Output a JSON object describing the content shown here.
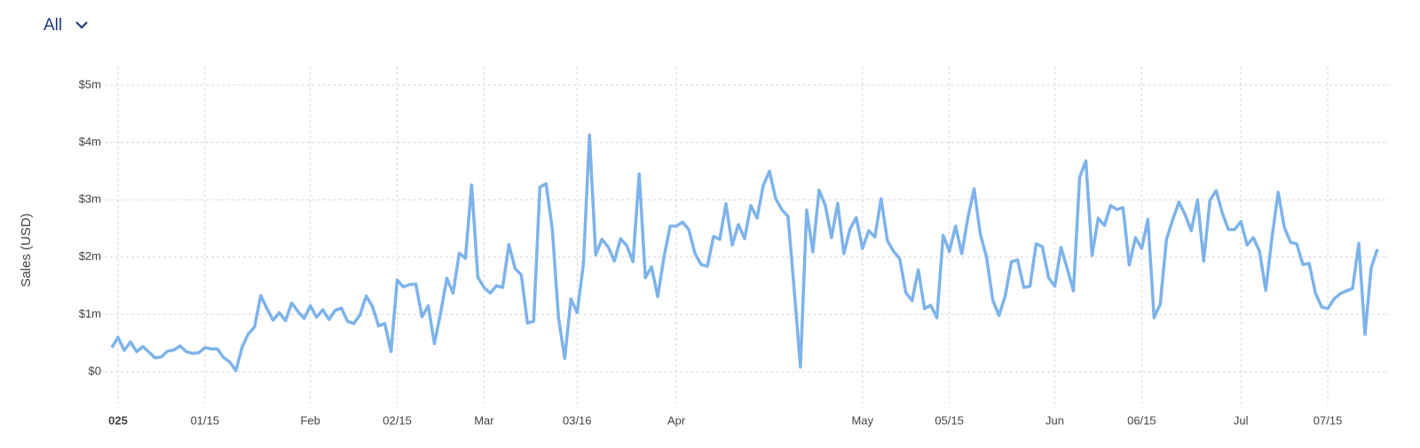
{
  "filter": {
    "label": "All"
  },
  "chart_data": {
    "type": "line",
    "y_label": "Sales (USD)",
    "color": "#7eb3ea",
    "grid": true,
    "xlim": [
      "2024-12-31",
      "2025-07-23"
    ],
    "xticks": [
      {
        "value": "2025-01-01",
        "label": "025"
      },
      {
        "value": "2025-01-15",
        "label": "01/15"
      },
      {
        "value": "2025-02-01",
        "label": "Feb"
      },
      {
        "value": "2025-02-15",
        "label": "02/15"
      },
      {
        "value": "2025-03-01",
        "label": "Mar"
      },
      {
        "value": "2025-03-16",
        "label": "03/16"
      },
      {
        "value": "2025-04-01",
        "label": "Apr"
      },
      {
        "value": "2025-05-01",
        "label": "May"
      },
      {
        "value": "2025-05-15",
        "label": "05/15"
      },
      {
        "value": "2025-06-01",
        "label": "Jun"
      },
      {
        "value": "2025-06-15",
        "label": "06/15"
      },
      {
        "value": "2025-07-01",
        "label": "Jul"
      },
      {
        "value": "2025-07-15",
        "label": "07/15"
      }
    ],
    "ylim": [
      0,
      5
    ],
    "yticks": [
      {
        "value": 0,
        "label": "$0"
      },
      {
        "value": 1,
        "label": "$1m"
      },
      {
        "value": 2,
        "label": "$2m"
      },
      {
        "value": 3,
        "label": "$3m"
      },
      {
        "value": 4,
        "label": "$4m"
      },
      {
        "value": 5,
        "label": "$5m"
      }
    ],
    "x": [
      "2024-12-31",
      "2025-01-01",
      "2025-01-02",
      "2025-01-03",
      "2025-01-04",
      "2025-01-05",
      "2025-01-06",
      "2025-01-07",
      "2025-01-08",
      "2025-01-09",
      "2025-01-10",
      "2025-01-11",
      "2025-01-12",
      "2025-01-13",
      "2025-01-14",
      "2025-01-15",
      "2025-01-16",
      "2025-01-17",
      "2025-01-18",
      "2025-01-19",
      "2025-01-20",
      "2025-01-21",
      "2025-01-22",
      "2025-01-23",
      "2025-01-24",
      "2025-01-25",
      "2025-01-26",
      "2025-01-27",
      "2025-01-28",
      "2025-01-29",
      "2025-01-30",
      "2025-01-31",
      "2025-02-01",
      "2025-02-02",
      "2025-02-03",
      "2025-02-04",
      "2025-02-05",
      "2025-02-06",
      "2025-02-07",
      "2025-02-08",
      "2025-02-09",
      "2025-02-10",
      "2025-02-11",
      "2025-02-12",
      "2025-02-13",
      "2025-02-14",
      "2025-02-15",
      "2025-02-16",
      "2025-02-17",
      "2025-02-18",
      "2025-02-19",
      "2025-02-20",
      "2025-02-21",
      "2025-02-22",
      "2025-02-23",
      "2025-02-24",
      "2025-02-25",
      "2025-02-26",
      "2025-02-27",
      "2025-02-28",
      "2025-03-01",
      "2025-03-02",
      "2025-03-03",
      "2025-03-04",
      "2025-03-05",
      "2025-03-06",
      "2025-03-07",
      "2025-03-08",
      "2025-03-09",
      "2025-03-10",
      "2025-03-11",
      "2025-03-12",
      "2025-03-13",
      "2025-03-14",
      "2025-03-15",
      "2025-03-16",
      "2025-03-17",
      "2025-03-18",
      "2025-03-19",
      "2025-03-20",
      "2025-03-21",
      "2025-03-22",
      "2025-03-23",
      "2025-03-24",
      "2025-03-25",
      "2025-03-26",
      "2025-03-27",
      "2025-03-28",
      "2025-03-29",
      "2025-03-30",
      "2025-03-31",
      "2025-04-01",
      "2025-04-02",
      "2025-04-03",
      "2025-04-04",
      "2025-04-05",
      "2025-04-06",
      "2025-04-07",
      "2025-04-08",
      "2025-04-09",
      "2025-04-10",
      "2025-04-11",
      "2025-04-12",
      "2025-04-13",
      "2025-04-14",
      "2025-04-15",
      "2025-04-16",
      "2025-04-17",
      "2025-04-18",
      "2025-04-19",
      "2025-04-20",
      "2025-04-21",
      "2025-04-22",
      "2025-04-23",
      "2025-04-24",
      "2025-04-25",
      "2025-04-26",
      "2025-04-27",
      "2025-04-28",
      "2025-04-29",
      "2025-04-30",
      "2025-05-01",
      "2025-05-02",
      "2025-05-03",
      "2025-05-04",
      "2025-05-05",
      "2025-05-06",
      "2025-05-07",
      "2025-05-08",
      "2025-05-09",
      "2025-05-10",
      "2025-05-11",
      "2025-05-12",
      "2025-05-13",
      "2025-05-14",
      "2025-05-15",
      "2025-05-16",
      "2025-05-17",
      "2025-05-18",
      "2025-05-19",
      "2025-05-20",
      "2025-05-21",
      "2025-05-22",
      "2025-05-23",
      "2025-05-24",
      "2025-05-25",
      "2025-05-26",
      "2025-05-27",
      "2025-05-28",
      "2025-05-29",
      "2025-05-30",
      "2025-05-31",
      "2025-06-01",
      "2025-06-02",
      "2025-06-03",
      "2025-06-04",
      "2025-06-05",
      "2025-06-06",
      "2025-06-07",
      "2025-06-08",
      "2025-06-09",
      "2025-06-10",
      "2025-06-11",
      "2025-06-12",
      "2025-06-13",
      "2025-06-14",
      "2025-06-15",
      "2025-06-16",
      "2025-06-17",
      "2025-06-18",
      "2025-06-19",
      "2025-06-20",
      "2025-06-21",
      "2025-06-22",
      "2025-06-23",
      "2025-06-24",
      "2025-06-25",
      "2025-06-26",
      "2025-06-27",
      "2025-06-28",
      "2025-06-29",
      "2025-06-30",
      "2025-07-01",
      "2025-07-02",
      "2025-07-03",
      "2025-07-04",
      "2025-07-05",
      "2025-07-06",
      "2025-07-07",
      "2025-07-08",
      "2025-07-09",
      "2025-07-10",
      "2025-07-11",
      "2025-07-12",
      "2025-07-13",
      "2025-07-14",
      "2025-07-15",
      "2025-07-16",
      "2025-07-17",
      "2025-07-18",
      "2025-07-19",
      "2025-07-20",
      "2025-07-21",
      "2025-07-22",
      "2025-07-23"
    ],
    "values": [
      0.42,
      0.6,
      0.37,
      0.52,
      0.35,
      0.44,
      0.34,
      0.24,
      0.26,
      0.36,
      0.38,
      0.45,
      0.35,
      0.32,
      0.33,
      0.42,
      0.4,
      0.4,
      0.25,
      0.17,
      0.02,
      0.43,
      0.66,
      0.78,
      1.33,
      1.1,
      0.9,
      1.03,
      0.89,
      1.2,
      1.05,
      0.93,
      1.15,
      0.95,
      1.08,
      0.91,
      1.07,
      1.11,
      0.88,
      0.84,
      0.99,
      1.32,
      1.14,
      0.8,
      0.84,
      0.35,
      1.6,
      1.48,
      1.52,
      1.53,
      0.96,
      1.15,
      0.49,
      1.03,
      1.63,
      1.37,
      2.07,
      1.98,
      3.26,
      1.65,
      1.47,
      1.37,
      1.5,
      1.47,
      2.22,
      1.8,
      1.69,
      0.85,
      0.88,
      3.22,
      3.28,
      2.49,
      0.94,
      0.23,
      1.27,
      1.03,
      1.87,
      4.13,
      2.04,
      2.31,
      2.18,
      1.93,
      2.32,
      2.2,
      1.92,
      3.45,
      1.64,
      1.83,
      1.31,
      2.0,
      2.54,
      2.54,
      2.61,
      2.48,
      2.06,
      1.87,
      1.84,
      2.36,
      2.31,
      2.93,
      2.21,
      2.57,
      2.32,
      2.9,
      2.68,
      3.25,
      3.5,
      3.02,
      2.83,
      2.71,
      1.43,
      0.08,
      2.82,
      2.09,
      3.17,
      2.9,
      2.34,
      2.94,
      2.06,
      2.49,
      2.69,
      2.15,
      2.46,
      2.35,
      3.02,
      2.29,
      2.1,
      1.97,
      1.38,
      1.24,
      1.78,
      1.1,
      1.16,
      0.94,
      2.38,
      2.1,
      2.54,
      2.06,
      2.69,
      3.19,
      2.4,
      2.0,
      1.25,
      0.98,
      1.32,
      1.92,
      1.95,
      1.47,
      1.49,
      2.23,
      2.18,
      1.64,
      1.49,
      2.17,
      1.8,
      1.41,
      3.39,
      3.68,
      2.03,
      2.68,
      2.55,
      2.9,
      2.83,
      2.86,
      1.86,
      2.34,
      2.15,
      2.66,
      0.94,
      1.18,
      2.31,
      2.65,
      2.96,
      2.74,
      2.46,
      3.0,
      1.93,
      2.99,
      3.16,
      2.77,
      2.48,
      2.48,
      2.62,
      2.21,
      2.34,
      2.1,
      1.42,
      2.34,
      3.13,
      2.52,
      2.26,
      2.23,
      1.87,
      1.89,
      1.38,
      1.13,
      1.1,
      1.27,
      1.36,
      1.41,
      1.45,
      2.24,
      0.65,
      1.81,
      2.14
    ]
  }
}
